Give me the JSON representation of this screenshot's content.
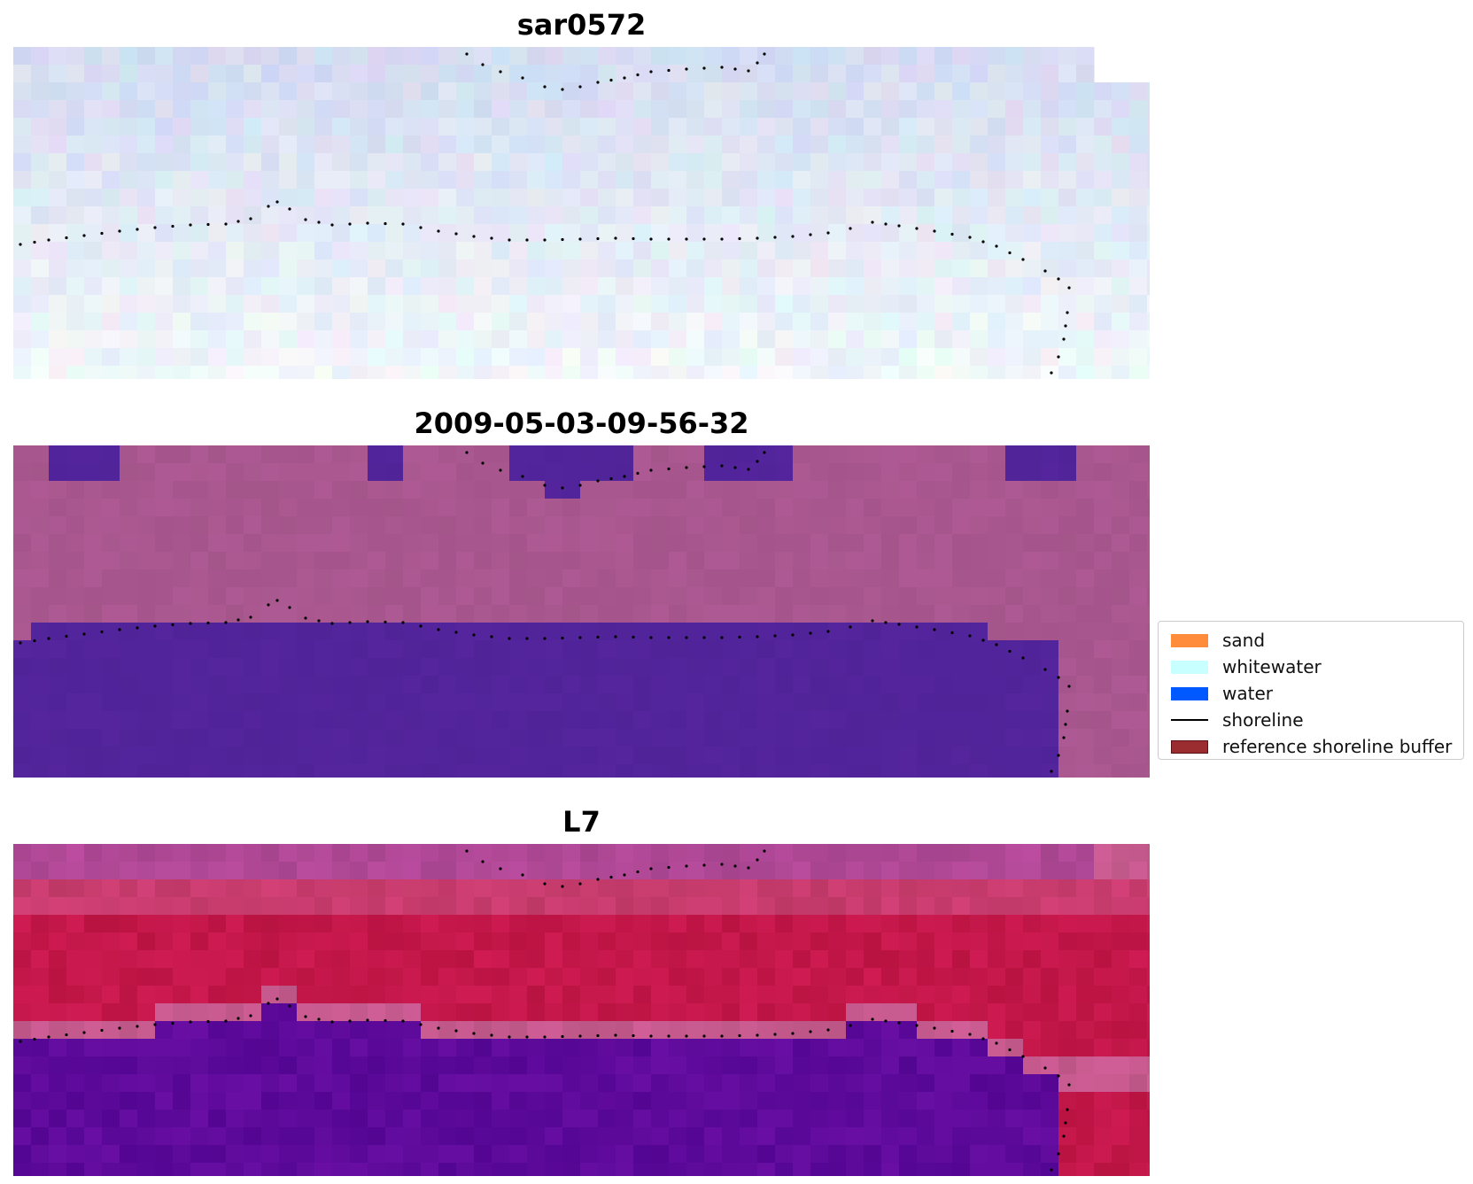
{
  "panels": [
    {
      "title": "sar0572"
    },
    {
      "title": "2009-05-03-09-56-32"
    },
    {
      "title": "L7"
    }
  ],
  "legend": {
    "items": [
      {
        "label": "sand",
        "color": "#ff8c3a",
        "kind": "patch"
      },
      {
        "label": "whitewater",
        "color": "#c8ffff",
        "kind": "patch"
      },
      {
        "label": "water",
        "color": "#0059ff",
        "kind": "patch"
      },
      {
        "label": "shoreline",
        "color": "#000000",
        "kind": "line"
      },
      {
        "label": "reference shoreline buffer",
        "color": "#9b2d30",
        "kind": "patch"
      }
    ]
  },
  "colors": {
    "sar_base": "#dde2f2",
    "class_background": "#a9578f",
    "class_water": "#52249b",
    "index_red": "#c4174a",
    "index_purple": "#5e0a9b",
    "index_pink": "#c65a8e"
  }
}
